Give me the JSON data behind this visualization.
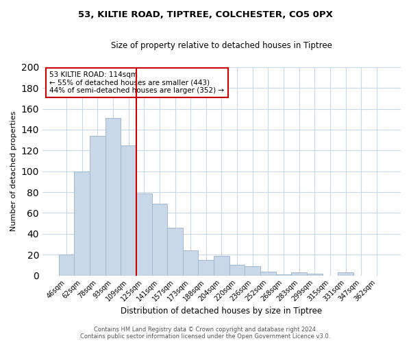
{
  "title_line1": "53, KILTIE ROAD, TIPTREE, COLCHESTER, CO5 0PX",
  "title_line2": "Size of property relative to detached houses in Tiptree",
  "xlabel": "Distribution of detached houses by size in Tiptree",
  "ylabel": "Number of detached properties",
  "bar_labels": [
    "46sqm",
    "62sqm",
    "78sqm",
    "93sqm",
    "109sqm",
    "125sqm",
    "141sqm",
    "157sqm",
    "173sqm",
    "188sqm",
    "204sqm",
    "220sqm",
    "236sqm",
    "252sqm",
    "268sqm",
    "283sqm",
    "299sqm",
    "315sqm",
    "331sqm",
    "347sqm",
    "362sqm"
  ],
  "bar_values": [
    20,
    100,
    134,
    151,
    125,
    79,
    69,
    46,
    24,
    15,
    19,
    10,
    9,
    4,
    1,
    3,
    2,
    0,
    3,
    0,
    0
  ],
  "bar_color": "#c8d8e8",
  "bar_edge_color": "#a0b8d0",
  "vline_x": 4.5,
  "vline_color": "#cc0000",
  "ylim": [
    0,
    200
  ],
  "yticks": [
    0,
    20,
    40,
    60,
    80,
    100,
    120,
    140,
    160,
    180,
    200
  ],
  "annotation_title": "53 KILTIE ROAD: 114sqm",
  "annotation_line1": "← 55% of detached houses are smaller (443)",
  "annotation_line2": "44% of semi-detached houses are larger (352) →",
  "annotation_box_color": "#ffffff",
  "annotation_box_edge": "#cc0000",
  "footer_line1": "Contains HM Land Registry data © Crown copyright and database right 2024.",
  "footer_line2": "Contains public sector information licensed under the Open Government Licence v3.0.",
  "background_color": "#ffffff",
  "grid_color": "#c8d8e8"
}
